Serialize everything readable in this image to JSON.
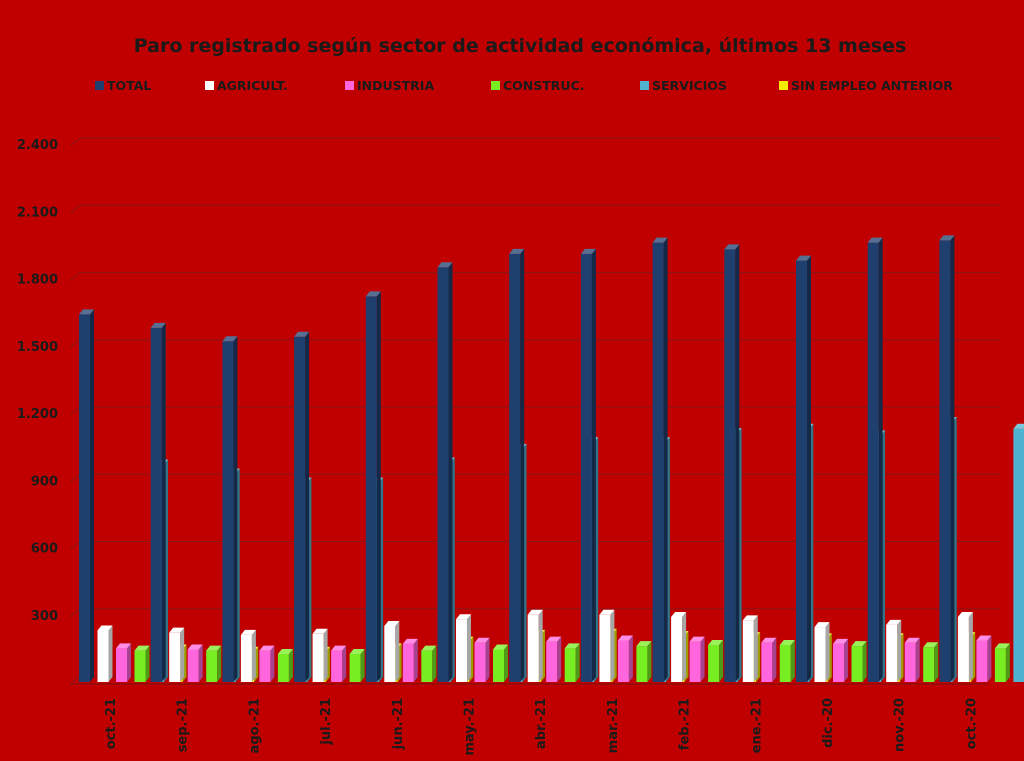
{
  "chart_data": {
    "type": "bar",
    "title": "Paro registrado según sector de actividad económica, últimos 13 meses",
    "categories": [
      "oct.-21",
      "sep.-21",
      "ago.-21",
      "jul.-21",
      "jun.-21",
      "may.-21",
      "abr.-21",
      "mar.-21",
      "feb.-21",
      "ene.-21",
      "dic.-20",
      "nov.-20",
      "oct.-20"
    ],
    "series": [
      {
        "name": "TOTAL",
        "color": "#1f3f6e",
        "values": [
          1640,
          1580,
          1520,
          1540,
          1720,
          1850,
          1910,
          1910,
          1960,
          1930,
          1880,
          1960,
          1970
        ]
      },
      {
        "name": "AGRICULT.",
        "color": "#ffffff",
        "values": [
          230,
          220,
          210,
          215,
          250,
          280,
          300,
          300,
          290,
          275,
          245,
          255,
          290
        ]
      },
      {
        "name": "INDUSTRIA",
        "color": "#ff66dd",
        "values": [
          150,
          145,
          140,
          140,
          170,
          175,
          180,
          185,
          180,
          175,
          170,
          175,
          185
        ]
      },
      {
        "name": "CONSTRUC.",
        "color": "#77ee22",
        "values": [
          140,
          140,
          125,
          125,
          140,
          145,
          150,
          160,
          165,
          165,
          160,
          155,
          150
        ]
      },
      {
        "name": "SERVICIOS",
        "color": "#4fb3cf",
        "values": [
          970,
          930,
          890,
          890,
          980,
          1040,
          1070,
          1070,
          1110,
          1130,
          1100,
          1160,
          1130
        ]
      },
      {
        "name": "SIN EMPLEO ANTERIOR",
        "color": "#f5ee00",
        "values": [
          145,
          135,
          135,
          150,
          180,
          210,
          215,
          205,
          200,
          195,
          195,
          200,
          205
        ]
      }
    ],
    "ylim": [
      0,
      2400
    ],
    "yticks": [
      300,
      600,
      900,
      1200,
      1500,
      1800,
      2100,
      2400
    ],
    "ytick_labels": [
      "300",
      "600",
      "900",
      "1.200",
      "1.500",
      "1.800",
      "2.100",
      "2.400"
    ],
    "grid": true,
    "legend_position": "top"
  }
}
